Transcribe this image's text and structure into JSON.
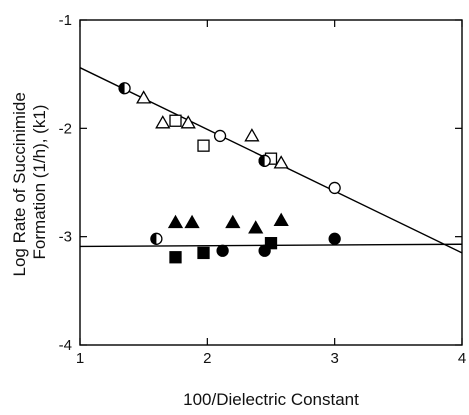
{
  "chart_data": {
    "type": "scatter",
    "xlabel": "100/Dielectric Constant",
    "ylabel_lines": [
      "Log Rate of Succinimide",
      "Formation (1/h), (k1)"
    ],
    "xlim": [
      1,
      4
    ],
    "ylim": [
      -4,
      -1
    ],
    "x_ticks": [
      {
        "value": 1,
        "label": "1"
      },
      {
        "value": 2,
        "label": "2"
      },
      {
        "value": 3,
        "label": "3"
      },
      {
        "value": 4,
        "label": "4"
      }
    ],
    "y_ticks": [
      {
        "value": -1,
        "label": "-1"
      },
      {
        "value": -2,
        "label": "-2"
      },
      {
        "value": -3,
        "label": "-3"
      },
      {
        "value": -4,
        "label": "-4"
      }
    ],
    "grid": false,
    "legend": "none",
    "series": [
      {
        "marker": "open-circle",
        "points": [
          [
            2.1,
            -2.07
          ],
          [
            2.45,
            -2.3
          ],
          [
            3.0,
            -2.55
          ]
        ]
      },
      {
        "marker": "open-triangle",
        "points": [
          [
            1.5,
            -1.72
          ],
          [
            1.65,
            -1.95
          ],
          [
            1.85,
            -1.95
          ],
          [
            2.35,
            -2.07
          ],
          [
            2.58,
            -2.32
          ]
        ]
      },
      {
        "marker": "open-square",
        "points": [
          [
            1.75,
            -1.93
          ],
          [
            1.97,
            -2.16
          ],
          [
            2.5,
            -2.28
          ]
        ]
      },
      {
        "marker": "half-filled-circle",
        "points": [
          [
            1.35,
            -1.63
          ],
          [
            1.6,
            -3.02
          ],
          [
            2.45,
            -2.3
          ]
        ]
      },
      {
        "marker": "filled-triangle",
        "points": [
          [
            1.75,
            -2.87
          ],
          [
            1.88,
            -2.87
          ],
          [
            2.2,
            -2.87
          ],
          [
            2.38,
            -2.92
          ],
          [
            2.58,
            -2.85
          ]
        ]
      },
      {
        "marker": "filled-square",
        "points": [
          [
            1.75,
            -3.19
          ],
          [
            1.97,
            -3.15
          ],
          [
            2.5,
            -3.06
          ]
        ]
      },
      {
        "marker": "filled-circle",
        "points": [
          [
            2.12,
            -3.13
          ],
          [
            2.45,
            -3.13
          ],
          [
            3.0,
            -3.02
          ]
        ]
      }
    ],
    "fit_lines": [
      {
        "from": [
          1.0,
          -1.44
        ],
        "to": [
          4.0,
          -3.15
        ]
      },
      {
        "from": [
          1.0,
          -3.09
        ],
        "to": [
          4.0,
          -3.07
        ]
      }
    ]
  }
}
